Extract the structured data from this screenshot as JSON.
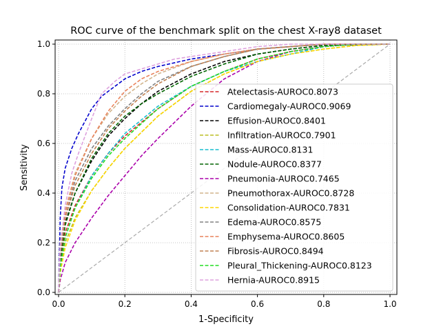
{
  "chart_data": {
    "type": "line",
    "title": "ROC curve of the benchmark split on the chest X-ray8 dataset",
    "xlabel": "1-Specificity",
    "ylabel": "Sensitivity",
    "xlim": [
      0,
      1
    ],
    "ylim": [
      0,
      1
    ],
    "xticks": [
      "0.0",
      "0.2",
      "0.4",
      "0.6",
      "0.8",
      "1.0"
    ],
    "yticks": [
      "0.0",
      "0.2",
      "0.4",
      "0.6",
      "0.8",
      "1.0"
    ],
    "grid": true,
    "legend_position": "lower-right",
    "reference_line": {
      "x": [
        0,
        1
      ],
      "y": [
        0,
        1
      ],
      "color": "#aaaaaa"
    },
    "series": [
      {
        "name": "Atelectasis-AUROC0.8073",
        "color": "#d62728",
        "x": [
          0,
          0.005,
          0.02,
          0.05,
          0.1,
          0.15,
          0.2,
          0.3,
          0.4,
          0.5,
          0.6,
          0.7,
          0.8,
          0.9,
          1.0
        ],
        "y": [
          0,
          0.12,
          0.24,
          0.35,
          0.47,
          0.56,
          0.63,
          0.74,
          0.83,
          0.89,
          0.94,
          0.97,
          0.99,
          1.0,
          1.0
        ]
      },
      {
        "name": "Cardiomegaly-AUROC0.9069",
        "color": "#0000cc",
        "x": [
          0,
          0.005,
          0.01,
          0.02,
          0.04,
          0.06,
          0.08,
          0.1,
          0.13,
          0.17,
          0.2,
          0.25,
          0.3,
          0.4,
          0.5,
          0.6,
          0.7,
          0.8,
          1.0
        ],
        "y": [
          0,
          0.3,
          0.42,
          0.5,
          0.58,
          0.64,
          0.69,
          0.74,
          0.79,
          0.83,
          0.86,
          0.89,
          0.91,
          0.94,
          0.96,
          0.98,
          0.99,
          1.0,
          1.0
        ]
      },
      {
        "name": "Effusion-AUROC0.8401",
        "color": "#000000",
        "x": [
          0,
          0.005,
          0.02,
          0.05,
          0.1,
          0.15,
          0.2,
          0.25,
          0.3,
          0.4,
          0.5,
          0.6,
          0.7,
          0.8,
          1.0
        ],
        "y": [
          0,
          0.15,
          0.28,
          0.4,
          0.53,
          0.63,
          0.7,
          0.76,
          0.81,
          0.88,
          0.93,
          0.96,
          0.98,
          0.995,
          1.0
        ]
      },
      {
        "name": "Infiltration-AUROC0.7901",
        "color": "#bcbd22",
        "x": [
          0,
          0.005,
          0.02,
          0.05,
          0.1,
          0.15,
          0.2,
          0.3,
          0.4,
          0.5,
          0.6,
          0.7,
          0.8,
          0.9,
          1.0
        ],
        "y": [
          0,
          0.1,
          0.2,
          0.3,
          0.41,
          0.5,
          0.58,
          0.71,
          0.81,
          0.88,
          0.93,
          0.96,
          0.98,
          0.995,
          1.0
        ]
      },
      {
        "name": "Mass-AUROC0.8131",
        "color": "#17becf",
        "x": [
          0,
          0.005,
          0.02,
          0.05,
          0.1,
          0.15,
          0.2,
          0.3,
          0.4,
          0.5,
          0.6,
          0.7,
          0.8,
          0.9,
          1.0
        ],
        "y": [
          0,
          0.1,
          0.22,
          0.34,
          0.47,
          0.56,
          0.64,
          0.75,
          0.83,
          0.89,
          0.93,
          0.96,
          0.99,
          1.0,
          1.0
        ]
      },
      {
        "name": "Nodule-AUROC0.8377",
        "color": "#006400",
        "x": [
          0,
          0.005,
          0.02,
          0.05,
          0.1,
          0.15,
          0.2,
          0.25,
          0.3,
          0.4,
          0.5,
          0.6,
          0.7,
          0.8,
          1.0
        ],
        "y": [
          0,
          0.13,
          0.27,
          0.4,
          0.54,
          0.64,
          0.71,
          0.76,
          0.8,
          0.87,
          0.92,
          0.96,
          0.98,
          0.995,
          1.0
        ]
      },
      {
        "name": "Pneumonia-AUROC0.7465",
        "color": "#aa00aa",
        "x": [
          0,
          0.005,
          0.02,
          0.05,
          0.1,
          0.15,
          0.2,
          0.25,
          0.3,
          0.4,
          0.5,
          0.6,
          0.7,
          0.8,
          0.9,
          1.0
        ],
        "y": [
          0,
          0.05,
          0.12,
          0.2,
          0.3,
          0.39,
          0.47,
          0.55,
          0.62,
          0.75,
          0.86,
          0.93,
          0.97,
          0.99,
          1.0,
          1.0
        ]
      },
      {
        "name": "Pneumothorax-AUROC0.8728",
        "color": "#d2b48c",
        "x": [
          0,
          0.005,
          0.02,
          0.05,
          0.1,
          0.15,
          0.2,
          0.25,
          0.3,
          0.4,
          0.5,
          0.6,
          0.7,
          0.8,
          1.0
        ],
        "y": [
          0,
          0.2,
          0.33,
          0.48,
          0.62,
          0.72,
          0.79,
          0.84,
          0.88,
          0.93,
          0.96,
          0.98,
          0.99,
          1.0,
          1.0
        ]
      },
      {
        "name": "Consolidation-AUROC0.7831",
        "color": "#ffd700",
        "x": [
          0,
          0.005,
          0.02,
          0.05,
          0.1,
          0.15,
          0.2,
          0.3,
          0.4,
          0.5,
          0.6,
          0.7,
          0.8,
          0.9,
          1.0
        ],
        "y": [
          0,
          0.08,
          0.18,
          0.29,
          0.41,
          0.5,
          0.58,
          0.71,
          0.81,
          0.88,
          0.93,
          0.96,
          0.98,
          0.995,
          1.0
        ]
      },
      {
        "name": "Edema-AUROC0.8575",
        "color": "#808080",
        "x": [
          0,
          0.005,
          0.02,
          0.05,
          0.1,
          0.15,
          0.2,
          0.25,
          0.3,
          0.4,
          0.5,
          0.6,
          0.7,
          0.8,
          1.0
        ],
        "y": [
          0,
          0.15,
          0.3,
          0.45,
          0.58,
          0.67,
          0.74,
          0.8,
          0.85,
          0.91,
          0.95,
          0.98,
          0.99,
          1.0,
          1.0
        ]
      },
      {
        "name": "Emphysema-AUROC0.8605",
        "color": "#e9825a",
        "x": [
          0,
          0.005,
          0.02,
          0.05,
          0.1,
          0.15,
          0.2,
          0.25,
          0.3,
          0.4,
          0.5,
          0.6,
          0.7,
          0.8,
          1.0
        ],
        "y": [
          0,
          0.18,
          0.32,
          0.47,
          0.62,
          0.73,
          0.81,
          0.86,
          0.89,
          0.93,
          0.96,
          0.98,
          0.99,
          1.0,
          1.0
        ]
      },
      {
        "name": "Fibrosis-AUROC0.8494",
        "color": "#c08050",
        "x": [
          0,
          0.005,
          0.02,
          0.05,
          0.1,
          0.15,
          0.2,
          0.25,
          0.3,
          0.4,
          0.5,
          0.6,
          0.7,
          0.8,
          1.0
        ],
        "y": [
          0,
          0.16,
          0.3,
          0.43,
          0.56,
          0.66,
          0.73,
          0.79,
          0.84,
          0.91,
          0.95,
          0.98,
          0.99,
          1.0,
          1.0
        ]
      },
      {
        "name": "Pleural_Thickening-AUROC0.8123",
        "color": "#22dd22",
        "x": [
          0,
          0.005,
          0.02,
          0.05,
          0.1,
          0.15,
          0.2,
          0.3,
          0.4,
          0.5,
          0.6,
          0.7,
          0.8,
          0.9,
          1.0
        ],
        "y": [
          0,
          0.1,
          0.22,
          0.34,
          0.46,
          0.55,
          0.62,
          0.74,
          0.83,
          0.89,
          0.94,
          0.97,
          0.99,
          1.0,
          1.0
        ]
      },
      {
        "name": "Hernia-AUROC0.8915",
        "color": "#dda0dd",
        "x": [
          0,
          0.005,
          0.02,
          0.04,
          0.06,
          0.1,
          0.13,
          0.17,
          0.2,
          0.25,
          0.3,
          0.35,
          0.4,
          0.5,
          0.6,
          0.7,
          0.8,
          1.0
        ],
        "y": [
          0,
          0.18,
          0.35,
          0.48,
          0.56,
          0.7,
          0.8,
          0.85,
          0.88,
          0.9,
          0.92,
          0.94,
          0.95,
          0.97,
          0.99,
          1.0,
          1.0,
          1.0
        ]
      }
    ]
  }
}
